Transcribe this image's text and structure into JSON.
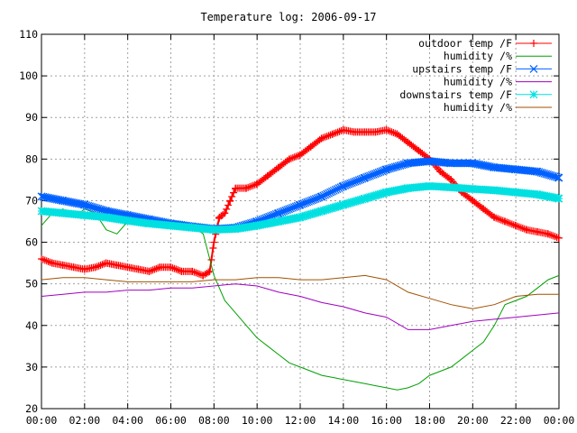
{
  "chart_data": {
    "type": "line",
    "title": "Temperature log: 2006-09-17",
    "xlabel": "",
    "ylabel": "",
    "xlim": [
      0,
      24
    ],
    "ylim": [
      20,
      110
    ],
    "x_ticks": [
      "00:00",
      "02:00",
      "04:00",
      "06:00",
      "08:00",
      "10:00",
      "12:00",
      "14:00",
      "16:00",
      "18:00",
      "20:00",
      "22:00",
      "00:00"
    ],
    "y_ticks": [
      "20",
      "30",
      "40",
      "50",
      "60",
      "70",
      "80",
      "90",
      "100",
      "110"
    ],
    "grid": true,
    "legend_position": "top-right",
    "series": [
      {
        "name": "outdoor temp /F",
        "color": "#ff0000",
        "marker": "plus",
        "x": [
          0,
          0.5,
          1,
          1.5,
          2,
          2.5,
          3,
          3.5,
          4,
          4.5,
          5,
          5.5,
          6,
          6.5,
          7,
          7.5,
          7.8,
          8,
          8.25,
          8.5,
          8.75,
          9,
          9.5,
          10,
          10.5,
          11,
          11.5,
          12,
          12.5,
          13,
          13.5,
          14,
          14.5,
          15,
          15.5,
          16,
          16.5,
          17,
          17.5,
          18,
          18.5,
          19,
          19.5,
          20,
          20.5,
          21,
          21.5,
          22,
          22.5,
          23,
          23.5,
          24
        ],
        "y": [
          56,
          55,
          54.5,
          54,
          53.5,
          54,
          55,
          54.5,
          54,
          53.5,
          53,
          54,
          54,
          53,
          53,
          52,
          53,
          60,
          66,
          67,
          70,
          73,
          73,
          74,
          76,
          78,
          80,
          81,
          83,
          85,
          86,
          87,
          86.5,
          86.5,
          86.5,
          87,
          86,
          84,
          82,
          80,
          77,
          75,
          72,
          70,
          68,
          66,
          65,
          64,
          63,
          62.5,
          62,
          61
        ]
      },
      {
        "name": "humidity /%",
        "color": "#00a000",
        "marker": "none",
        "x": [
          0,
          0.5,
          1,
          1.5,
          2,
          2.5,
          3,
          3.5,
          4,
          4.5,
          5,
          5.5,
          6,
          6.5,
          7,
          7.5,
          7.8,
          8,
          8.5,
          9,
          9.5,
          10,
          10.5,
          11,
          11.5,
          12,
          12.5,
          13,
          13.5,
          14,
          14.5,
          15,
          15.5,
          16,
          16.5,
          17,
          17.5,
          18,
          18.5,
          19,
          19.5,
          20,
          20.5,
          21,
          21.5,
          22,
          22.5,
          23,
          23.5,
          24
        ],
        "y": [
          64,
          67,
          68,
          66,
          68,
          67,
          63,
          62,
          65,
          66,
          65,
          64,
          65,
          64,
          64,
          62,
          56,
          52,
          46,
          43,
          40,
          37,
          35,
          33,
          31,
          30,
          29,
          28,
          27.5,
          27,
          26.5,
          26,
          25.5,
          25,
          24.5,
          25,
          26,
          28,
          29,
          30,
          32,
          34,
          36,
          40,
          45,
          46,
          47,
          49,
          51,
          52
        ]
      },
      {
        "name": "upstairs temp /F",
        "color": "#0060ff",
        "marker": "cross",
        "x": [
          0,
          1,
          2,
          3,
          4,
          5,
          6,
          7,
          8,
          9,
          10,
          11,
          12,
          13,
          14,
          15,
          16,
          17,
          18,
          19,
          20,
          21,
          22,
          23,
          24
        ],
        "y": [
          71,
          70,
          69,
          67.5,
          66.5,
          65.5,
          64.5,
          63.8,
          63.2,
          63.5,
          65,
          67,
          69,
          71,
          73.5,
          75.5,
          77.5,
          79,
          79.5,
          79,
          79,
          78,
          77.5,
          77,
          75.5
        ]
      },
      {
        "name": "humidity /%",
        "color": "#a000c0",
        "marker": "none",
        "x": [
          0,
          1,
          2,
          3,
          4,
          5,
          6,
          7,
          8,
          9,
          10,
          11,
          12,
          13,
          14,
          15,
          16,
          17,
          18,
          19,
          20,
          21,
          22,
          23,
          24
        ],
        "y": [
          47,
          47.5,
          48,
          48,
          48.5,
          48.5,
          49,
          49,
          49.5,
          50,
          49.5,
          48,
          47,
          45.5,
          44.5,
          43,
          42,
          39,
          39,
          40,
          41,
          41.5,
          42,
          42.5,
          43
        ]
      },
      {
        "name": "downstairs temp /F",
        "color": "#00e0e0",
        "marker": "star",
        "x": [
          0,
          1,
          2,
          3,
          4,
          5,
          6,
          7,
          8,
          9,
          10,
          11,
          12,
          13,
          14,
          15,
          16,
          17,
          18,
          19,
          20,
          21,
          22,
          23,
          24
        ],
        "y": [
          67.5,
          67,
          66.5,
          66,
          65.2,
          64.5,
          64,
          63.5,
          63,
          63.2,
          64,
          65,
          66,
          67.5,
          69,
          70.5,
          72,
          73,
          73.5,
          73.2,
          72.8,
          72.5,
          72,
          71.5,
          70.5
        ]
      },
      {
        "name": "humidity /%",
        "color": "#a05000",
        "marker": "none",
        "x": [
          0,
          1,
          2,
          3,
          4,
          5,
          6,
          7,
          8,
          9,
          10,
          11,
          12,
          13,
          14,
          15,
          16,
          17,
          18,
          19,
          20,
          21,
          22,
          23,
          24
        ],
        "y": [
          51,
          51.5,
          51.5,
          51,
          50.5,
          50.5,
          50.5,
          50.5,
          51,
          51,
          51.5,
          51.5,
          51,
          51,
          51.5,
          52,
          51,
          48,
          46.5,
          45,
          44,
          45,
          47,
          47.5,
          47.5
        ]
      }
    ]
  }
}
